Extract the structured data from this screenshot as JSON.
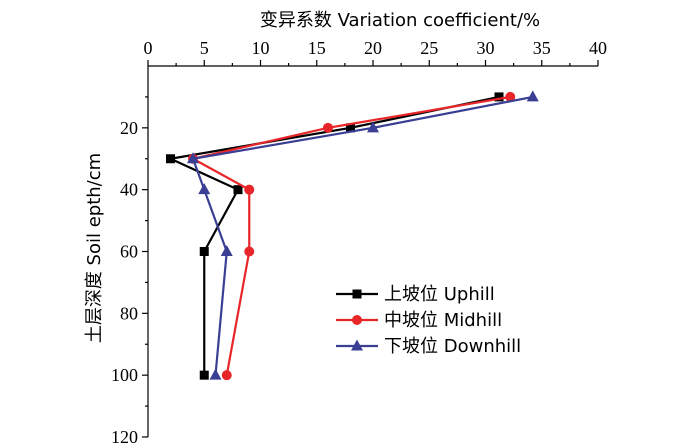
{
  "chart_data": {
    "type": "line",
    "xlabel": "变异系数 Variation coefficient/%",
    "ylabel": "土层深度 Soil epth/cm",
    "xlim": [
      0,
      40
    ],
    "ylim": [
      0,
      120
    ],
    "x_ticks": [
      0,
      5,
      10,
      15,
      20,
      25,
      30,
      35,
      40
    ],
    "y_ticks": [
      20,
      40,
      60,
      80,
      100,
      120
    ],
    "x_axis_position": "top",
    "y_axis_inverted": true,
    "grid": false,
    "legend_position": "lower-right",
    "series": [
      {
        "name": "上坡位 Uphill",
        "color": "#000000",
        "marker": "square",
        "points": [
          {
            "cv": 31.2,
            "depth": 10
          },
          {
            "cv": 18.0,
            "depth": 20
          },
          {
            "cv": 2.0,
            "depth": 30
          },
          {
            "cv": 8.0,
            "depth": 40
          },
          {
            "cv": 5.0,
            "depth": 60
          },
          {
            "cv": 5.0,
            "depth": 100
          }
        ]
      },
      {
        "name": "中坡位 Midhill",
        "color": "#e8262a",
        "marker": "circle",
        "points": [
          {
            "cv": 32.2,
            "depth": 10
          },
          {
            "cv": 16.0,
            "depth": 20
          },
          {
            "cv": 4.0,
            "depth": 30
          },
          {
            "cv": 9.0,
            "depth": 40
          },
          {
            "cv": 9.0,
            "depth": 60
          },
          {
            "cv": 7.0,
            "depth": 100
          }
        ]
      },
      {
        "name": "下坡位 Downhill",
        "color": "#3a3f94",
        "marker": "triangle",
        "points": [
          {
            "cv": 34.2,
            "depth": 10
          },
          {
            "cv": 20.0,
            "depth": 20
          },
          {
            "cv": 4.0,
            "depth": 30
          },
          {
            "cv": 5.0,
            "depth": 40
          },
          {
            "cv": 7.0,
            "depth": 60
          },
          {
            "cv": 6.0,
            "depth": 100
          }
        ]
      }
    ]
  }
}
